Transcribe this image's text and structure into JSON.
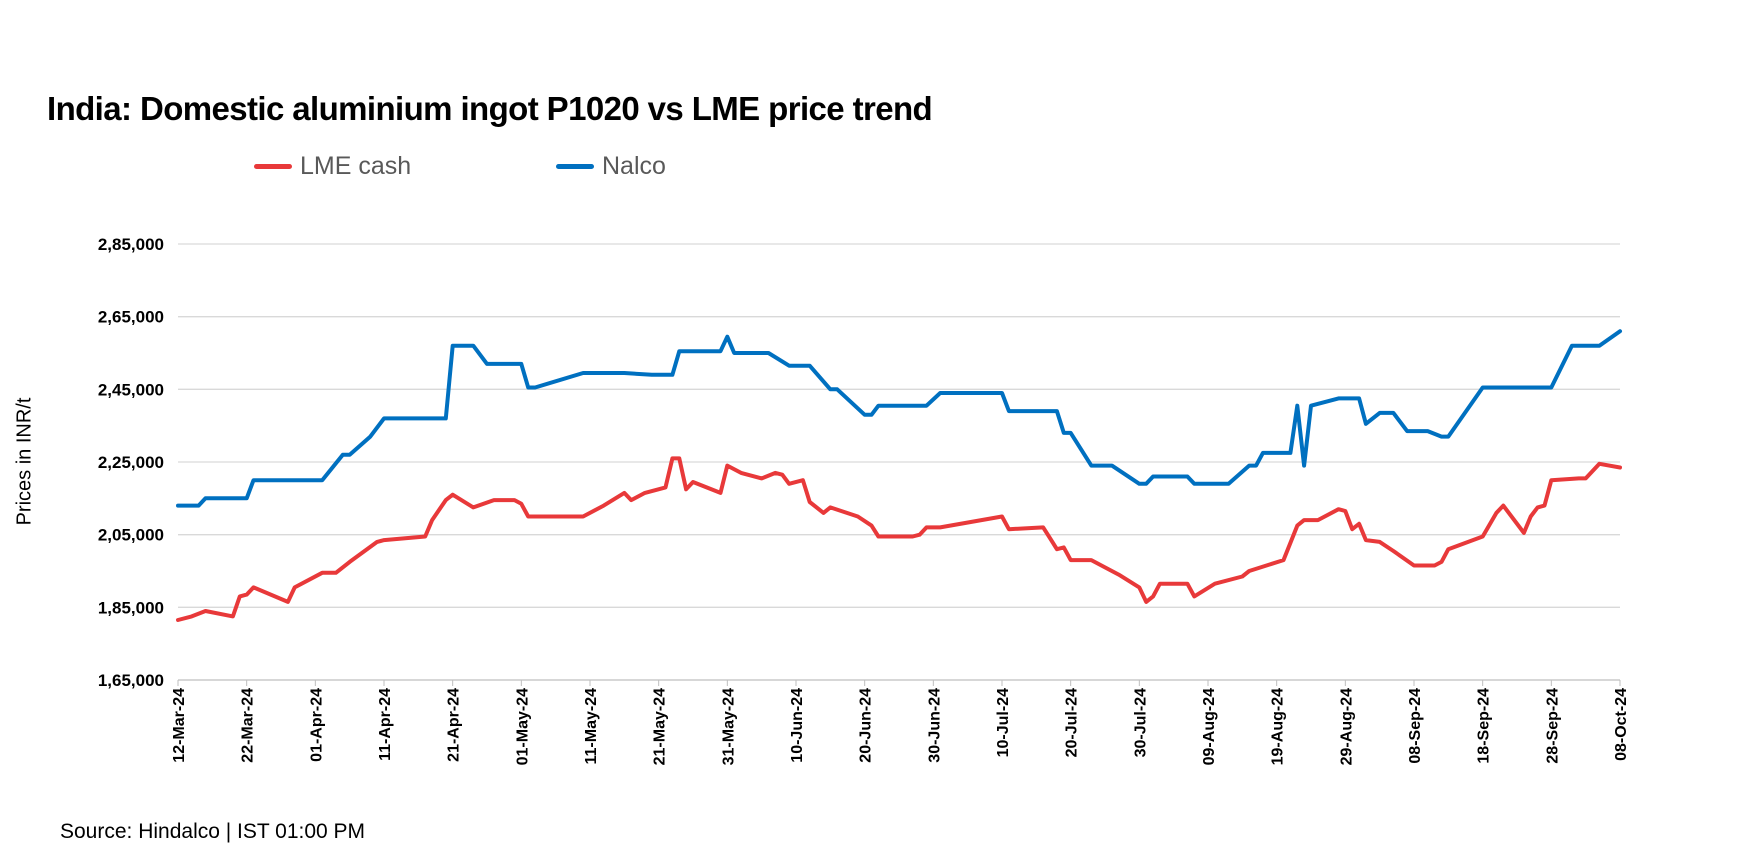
{
  "chart_data": {
    "type": "line",
    "title": "India: Domestic aluminium ingot P1020 vs LME price trend",
    "ylabel": "Prices in INR/t",
    "xlabel": "",
    "source": "Source: Hindalco | IST 01:00 PM",
    "ylim": [
      165000,
      285000
    ],
    "xlim": [
      "2024-03-12",
      "2024-10-08"
    ],
    "grid": "horizontal",
    "legend_position": "top",
    "y_ticks": [
      {
        "value": 165000,
        "label": "1,65,000"
      },
      {
        "value": 185000,
        "label": "1,85,000"
      },
      {
        "value": 205000,
        "label": "2,05,000"
      },
      {
        "value": 225000,
        "label": "2,25,000"
      },
      {
        "value": 245000,
        "label": "2,45,000"
      },
      {
        "value": 265000,
        "label": "2,65,000"
      },
      {
        "value": 285000,
        "label": "2,85,000"
      }
    ],
    "x_ticks": [
      {
        "date": "2024-03-12",
        "label": "12-Mar-24"
      },
      {
        "date": "2024-03-22",
        "label": "22-Mar-24"
      },
      {
        "date": "2024-04-01",
        "label": "01-Apr-24"
      },
      {
        "date": "2024-04-11",
        "label": "11-Apr-24"
      },
      {
        "date": "2024-04-21",
        "label": "21-Apr-24"
      },
      {
        "date": "2024-05-01",
        "label": "01-May-24"
      },
      {
        "date": "2024-05-11",
        "label": "11-May-24"
      },
      {
        "date": "2024-05-21",
        "label": "21-May-24"
      },
      {
        "date": "2024-05-31",
        "label": "31-May-24"
      },
      {
        "date": "2024-06-10",
        "label": "10-Jun-24"
      },
      {
        "date": "2024-06-20",
        "label": "20-Jun-24"
      },
      {
        "date": "2024-06-30",
        "label": "30-Jun-24"
      },
      {
        "date": "2024-07-10",
        "label": "10-Jul-24"
      },
      {
        "date": "2024-07-20",
        "label": "20-Jul-24"
      },
      {
        "date": "2024-07-30",
        "label": "30-Jul-24"
      },
      {
        "date": "2024-08-09",
        "label": "09-Aug-24"
      },
      {
        "date": "2024-08-19",
        "label": "19-Aug-24"
      },
      {
        "date": "2024-08-29",
        "label": "29-Aug-24"
      },
      {
        "date": "2024-09-08",
        "label": "08-Sep-24"
      },
      {
        "date": "2024-09-18",
        "label": "18-Sep-24"
      },
      {
        "date": "2024-09-28",
        "label": "28-Sep-24"
      },
      {
        "date": "2024-10-08",
        "label": "08-Oct-24"
      }
    ],
    "series": [
      {
        "name": "LME cash",
        "color": "#E8393A",
        "points": [
          [
            "2024-03-12",
            181500
          ],
          [
            "2024-03-14",
            182500
          ],
          [
            "2024-03-16",
            184000
          ],
          [
            "2024-03-20",
            182500
          ],
          [
            "2024-03-21",
            188000
          ],
          [
            "2024-03-22",
            188500
          ],
          [
            "2024-03-23",
            190500
          ],
          [
            "2024-03-28",
            186500
          ],
          [
            "2024-03-29",
            190500
          ],
          [
            "2024-04-02",
            194500
          ],
          [
            "2024-04-04",
            194500
          ],
          [
            "2024-04-06",
            197500
          ],
          [
            "2024-04-10",
            203000
          ],
          [
            "2024-04-11",
            203500
          ],
          [
            "2024-04-17",
            204500
          ],
          [
            "2024-04-18",
            209000
          ],
          [
            "2024-04-20",
            214500
          ],
          [
            "2024-04-21",
            216000
          ],
          [
            "2024-04-24",
            212500
          ],
          [
            "2024-04-27",
            214500
          ],
          [
            "2024-04-30",
            214500
          ],
          [
            "2024-05-01",
            213500
          ],
          [
            "2024-05-02",
            210000
          ],
          [
            "2024-05-10",
            210000
          ],
          [
            "2024-05-13",
            213000
          ],
          [
            "2024-05-16",
            216500
          ],
          [
            "2024-05-17",
            214500
          ],
          [
            "2024-05-19",
            216500
          ],
          [
            "2024-05-22",
            218000
          ],
          [
            "2024-05-23",
            226000
          ],
          [
            "2024-05-24",
            226000
          ],
          [
            "2024-05-25",
            217500
          ],
          [
            "2024-05-26",
            219500
          ],
          [
            "2024-05-30",
            216500
          ],
          [
            "2024-05-31",
            224000
          ],
          [
            "2024-06-02",
            222000
          ],
          [
            "2024-06-05",
            220500
          ],
          [
            "2024-06-07",
            222000
          ],
          [
            "2024-06-08",
            221500
          ],
          [
            "2024-06-09",
            219000
          ],
          [
            "2024-06-11",
            220000
          ],
          [
            "2024-06-12",
            214000
          ],
          [
            "2024-06-14",
            211000
          ],
          [
            "2024-06-15",
            212500
          ],
          [
            "2024-06-19",
            210000
          ],
          [
            "2024-06-21",
            207500
          ],
          [
            "2024-06-22",
            204500
          ],
          [
            "2024-06-27",
            204500
          ],
          [
            "2024-06-28",
            205000
          ],
          [
            "2024-06-29",
            207000
          ],
          [
            "2024-07-01",
            207000
          ],
          [
            "2024-07-10",
            210000
          ],
          [
            "2024-07-11",
            206500
          ],
          [
            "2024-07-16",
            207000
          ],
          [
            "2024-07-17",
            204000
          ],
          [
            "2024-07-18",
            201000
          ],
          [
            "2024-07-19",
            201500
          ],
          [
            "2024-07-20",
            198000
          ],
          [
            "2024-07-23",
            198000
          ],
          [
            "2024-07-27",
            194000
          ],
          [
            "2024-07-30",
            190500
          ],
          [
            "2024-07-31",
            186500
          ],
          [
            "2024-08-01",
            188000
          ],
          [
            "2024-08-02",
            191500
          ],
          [
            "2024-08-06",
            191500
          ],
          [
            "2024-08-07",
            188000
          ],
          [
            "2024-08-10",
            191500
          ],
          [
            "2024-08-14",
            193500
          ],
          [
            "2024-08-15",
            195000
          ],
          [
            "2024-08-20",
            198000
          ],
          [
            "2024-08-22",
            207500
          ],
          [
            "2024-08-23",
            209000
          ],
          [
            "2024-08-25",
            209000
          ],
          [
            "2024-08-28",
            212000
          ],
          [
            "2024-08-29",
            211500
          ],
          [
            "2024-08-30",
            206500
          ],
          [
            "2024-08-31",
            208000
          ],
          [
            "2024-09-01",
            203500
          ],
          [
            "2024-09-03",
            203000
          ],
          [
            "2024-09-05",
            200500
          ],
          [
            "2024-09-08",
            196500
          ],
          [
            "2024-09-11",
            196500
          ],
          [
            "2024-09-12",
            197500
          ],
          [
            "2024-09-13",
            201000
          ],
          [
            "2024-09-18",
            204500
          ],
          [
            "2024-09-20",
            211000
          ],
          [
            "2024-09-21",
            213000
          ],
          [
            "2024-09-24",
            205500
          ],
          [
            "2024-09-25",
            210000
          ],
          [
            "2024-09-26",
            212500
          ],
          [
            "2024-09-27",
            213000
          ],
          [
            "2024-09-28",
            220000
          ],
          [
            "2024-10-02",
            220500
          ],
          [
            "2024-10-03",
            220500
          ],
          [
            "2024-10-05",
            224500
          ],
          [
            "2024-10-08",
            223500
          ]
        ]
      },
      {
        "name": "Nalco",
        "color": "#0070C0",
        "points": [
          [
            "2024-03-12",
            213000
          ],
          [
            "2024-03-15",
            213000
          ],
          [
            "2024-03-16",
            215000
          ],
          [
            "2024-03-22",
            215000
          ],
          [
            "2024-03-23",
            220000
          ],
          [
            "2024-04-02",
            220000
          ],
          [
            "2024-04-05",
            227000
          ],
          [
            "2024-04-06",
            227000
          ],
          [
            "2024-04-09",
            232000
          ],
          [
            "2024-04-11",
            237000
          ],
          [
            "2024-04-20",
            237000
          ],
          [
            "2024-04-21",
            257000
          ],
          [
            "2024-04-24",
            257000
          ],
          [
            "2024-04-26",
            252000
          ],
          [
            "2024-05-01",
            252000
          ],
          [
            "2024-05-02",
            245500
          ],
          [
            "2024-05-03",
            245500
          ],
          [
            "2024-05-10",
            249500
          ],
          [
            "2024-05-16",
            249500
          ],
          [
            "2024-05-20",
            249000
          ],
          [
            "2024-05-23",
            249000
          ],
          [
            "2024-05-24",
            255500
          ],
          [
            "2024-05-30",
            255500
          ],
          [
            "2024-05-31",
            259500
          ],
          [
            "2024-06-01",
            255000
          ],
          [
            "2024-06-06",
            255000
          ],
          [
            "2024-06-09",
            251500
          ],
          [
            "2024-06-12",
            251500
          ],
          [
            "2024-06-15",
            245000
          ],
          [
            "2024-06-16",
            245000
          ],
          [
            "2024-06-20",
            238000
          ],
          [
            "2024-06-21",
            238000
          ],
          [
            "2024-06-22",
            240500
          ],
          [
            "2024-06-29",
            240500
          ],
          [
            "2024-07-01",
            244000
          ],
          [
            "2024-07-10",
            244000
          ],
          [
            "2024-07-11",
            239000
          ],
          [
            "2024-07-18",
            239000
          ],
          [
            "2024-07-19",
            233000
          ],
          [
            "2024-07-20",
            233000
          ],
          [
            "2024-07-23",
            224000
          ],
          [
            "2024-07-26",
            224000
          ],
          [
            "2024-07-30",
            219000
          ],
          [
            "2024-07-31",
            219000
          ],
          [
            "2024-08-01",
            221000
          ],
          [
            "2024-08-06",
            221000
          ],
          [
            "2024-08-07",
            219000
          ],
          [
            "2024-08-12",
            219000
          ],
          [
            "2024-08-15",
            224000
          ],
          [
            "2024-08-16",
            224000
          ],
          [
            "2024-08-17",
            227500
          ],
          [
            "2024-08-21",
            227500
          ],
          [
            "2024-08-22",
            240500
          ],
          [
            "2024-08-23",
            224000
          ],
          [
            "2024-08-24",
            240500
          ],
          [
            "2024-08-28",
            242500
          ],
          [
            "2024-08-31",
            242500
          ],
          [
            "2024-09-01",
            235500
          ],
          [
            "2024-09-03",
            238500
          ],
          [
            "2024-09-05",
            238500
          ],
          [
            "2024-09-07",
            233500
          ],
          [
            "2024-09-10",
            233500
          ],
          [
            "2024-09-12",
            232000
          ],
          [
            "2024-09-13",
            232000
          ],
          [
            "2024-09-18",
            245500
          ],
          [
            "2024-09-28",
            245500
          ],
          [
            "2024-10-01",
            257000
          ],
          [
            "2024-10-05",
            257000
          ],
          [
            "2024-10-08",
            261000
          ]
        ]
      }
    ]
  }
}
